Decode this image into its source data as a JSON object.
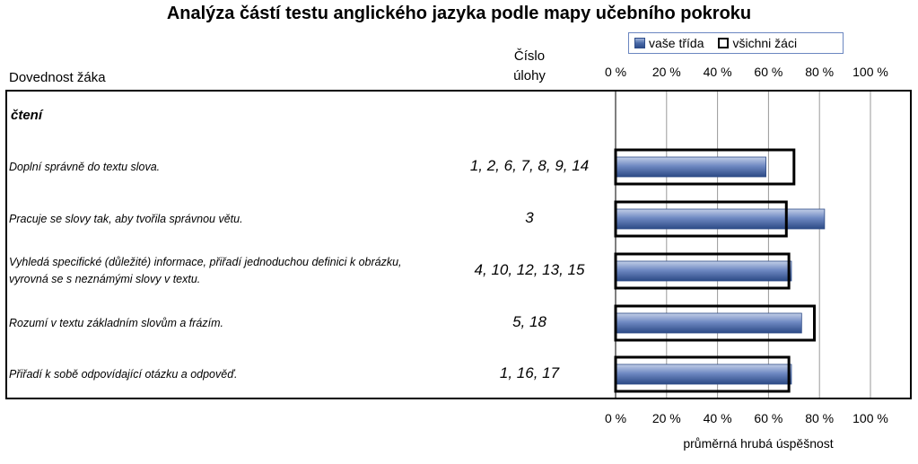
{
  "chart_data": {
    "type": "bar",
    "orientation": "horizontal",
    "title": "Analýza částí testu anglického jazyka podle mapy učebního pokroku",
    "xlabel": "průměrná hrubá úspěšnost",
    "xlim": [
      0,
      100
    ],
    "ticks": [
      "0 %",
      "20 %",
      "40 %",
      "60 %",
      "80 %",
      "100 %"
    ],
    "tick_values": [
      0,
      20,
      40,
      60,
      80,
      100
    ],
    "grid": true,
    "legend_position": "top",
    "columns": {
      "skill": "Dovednost žáka",
      "task_line1": "Číslo",
      "task_line2": "úlohy"
    },
    "section": "čtení",
    "series": [
      {
        "name": "vaše třída",
        "style": "filled-bar",
        "color": "#4a6aa8",
        "values": [
          59,
          82,
          69,
          73,
          69
        ]
      },
      {
        "name": "všichni žáci",
        "style": "outline-bar",
        "color": "#000000",
        "values": [
          70,
          67,
          68,
          78,
          68
        ]
      }
    ],
    "categories": [
      {
        "skill": [
          "Doplní správně do textu slova."
        ],
        "tasks": "1, 2, 6, 7, 8, 9, 14"
      },
      {
        "skill": [
          "Pracuje se slovy tak, aby tvořila správnou větu."
        ],
        "tasks": "3"
      },
      {
        "skill": [
          "Vyhledá specifické (důležité) informace, přiřadí jednoduchou definici k obrázku,",
          "vyrovná se s neznámými slovy v textu."
        ],
        "tasks": "4, 10, 12, 13, 15"
      },
      {
        "skill": [
          "Rozumí v textu základním slovům a frázím."
        ],
        "tasks": "5, 18"
      },
      {
        "skill": [
          "Přiřadí k sobě odpovídající otázku a odpověď."
        ],
        "tasks": "1, 16, 17"
      }
    ]
  }
}
